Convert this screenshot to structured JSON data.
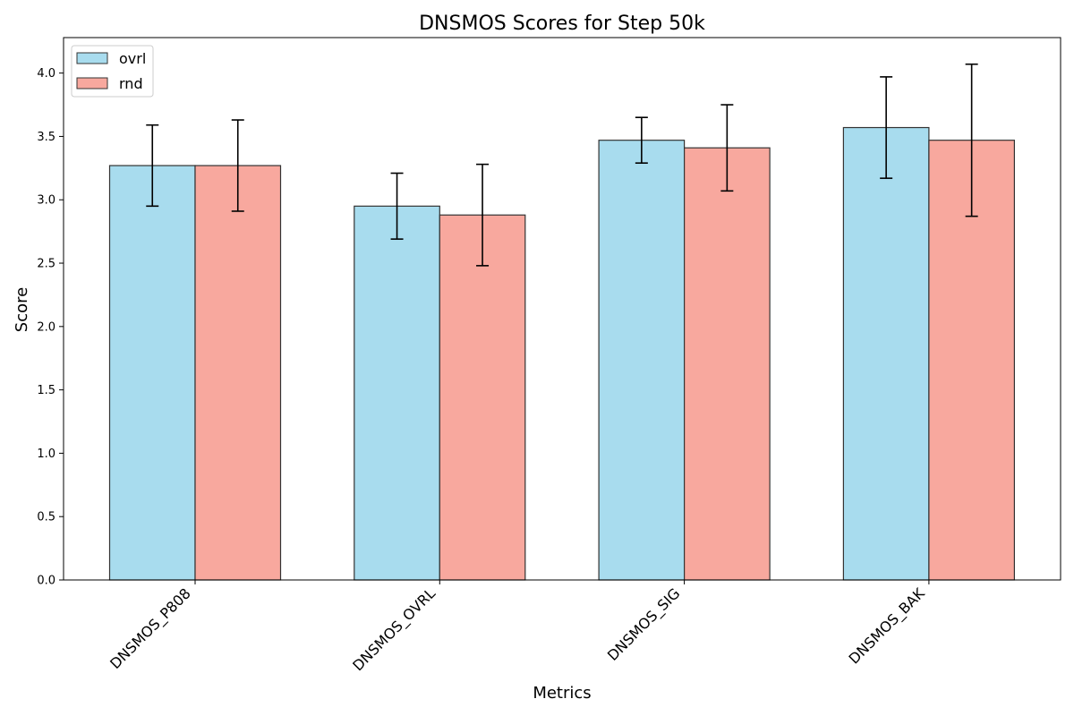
{
  "chart_data": {
    "type": "bar",
    "title": "DNSMOS Scores for Step 50k",
    "xlabel": "Metrics",
    "ylabel": "Score",
    "categories": [
      "DNSMOS_P808",
      "DNSMOS_OVRL",
      "DNSMOS_SIG",
      "DNSMOS_BAK"
    ],
    "ylim": [
      0,
      4.28
    ],
    "yticks": [
      "0.0",
      "0.5",
      "1.0",
      "1.5",
      "2.0",
      "2.5",
      "3.0",
      "3.5",
      "4.0"
    ],
    "grid": false,
    "legend_position": "top-left",
    "series": [
      {
        "name": "ovrl",
        "color": "#a8dcee",
        "values": [
          3.27,
          2.95,
          3.47,
          3.57
        ],
        "errors": [
          0.32,
          0.26,
          0.18,
          0.4
        ]
      },
      {
        "name": "rnd",
        "color": "#f8a89e",
        "values": [
          3.27,
          2.88,
          3.41,
          3.47
        ],
        "errors": [
          0.36,
          0.4,
          0.34,
          0.6
        ]
      }
    ]
  }
}
